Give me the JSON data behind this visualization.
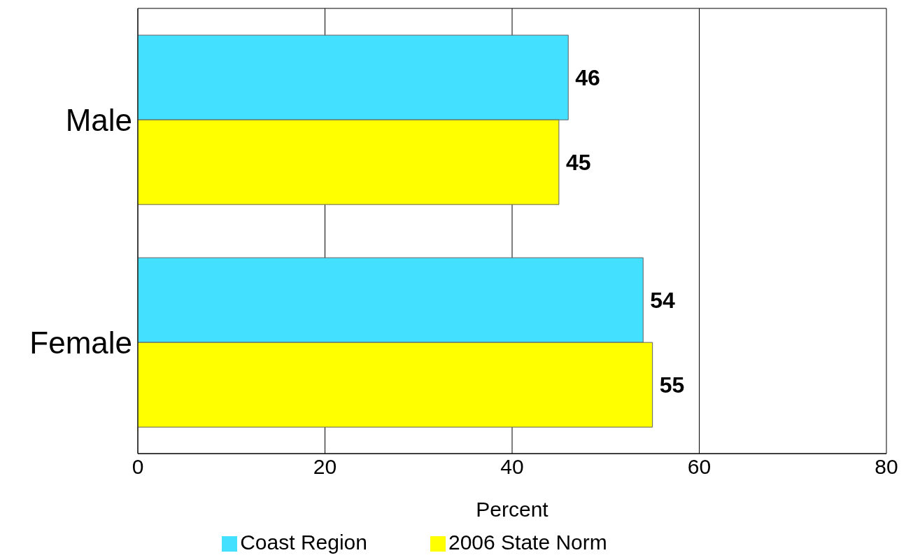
{
  "chart_data": {
    "type": "bar",
    "orientation": "horizontal",
    "xlabel": "Percent",
    "categories": [
      "Male",
      "Female"
    ],
    "series": [
      {
        "name": "Coast Region",
        "color": "#44e0ff",
        "values": [
          46,
          54
        ]
      },
      {
        "name": "2006 State Norm",
        "color": "#ffff00",
        "values": [
          45,
          55
        ]
      }
    ],
    "xlim": [
      0,
      80
    ],
    "xticks": [
      0,
      20,
      40,
      60,
      80
    ],
    "grid": "x",
    "legend": "bottom",
    "data_labels": true
  }
}
